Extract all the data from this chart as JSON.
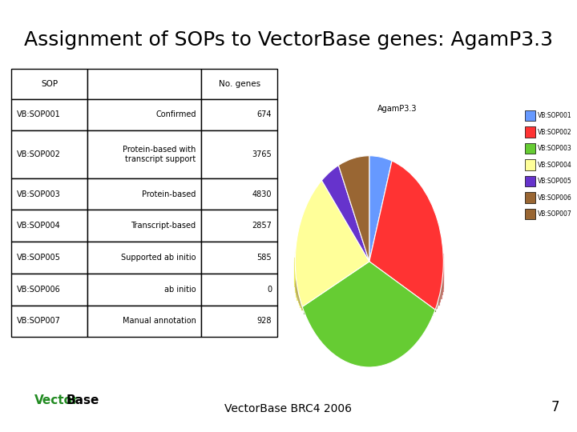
{
  "title": "Assignment of SOPs to VectorBase genes: AgamP3.3",
  "title_fontsize": 18,
  "pie_title": "AgamP3.3",
  "sops": [
    "VB:SOP001",
    "VB:SOP002",
    "VB:SOP003",
    "VB:SOP004",
    "VB:SOP005",
    "VB:SOP006",
    "VB:SOP007"
  ],
  "descriptions": [
    "Confirmed",
    "Protein-based with\ntranscript support",
    "Protein-based",
    "Transcript-based",
    "Supported ab initio",
    "ab initio",
    "Manual annotation"
  ],
  "values": [
    674,
    3765,
    4830,
    2857,
    585,
    0,
    928
  ],
  "pie_colors": [
    "#6699FF",
    "#FF3333",
    "#66CC33",
    "#FFFF99",
    "#6633CC",
    "#996633",
    "#996633"
  ],
  "legend_colors": [
    "#6699FF",
    "#FF3333",
    "#66CC33",
    "#FFFF99",
    "#6633CC",
    "#996633",
    "#996633"
  ],
  "legend_labels": [
    "VB:SOP001",
    "VB:SOP002",
    "VB:SOP003",
    "VB:SOP004",
    "VB:SOP005",
    "VB:SOP006",
    "VB:SOP007"
  ],
  "footer_text": "VectorBase BRC4 2006",
  "footer_number": "7",
  "background_color": "#FFFFFF"
}
